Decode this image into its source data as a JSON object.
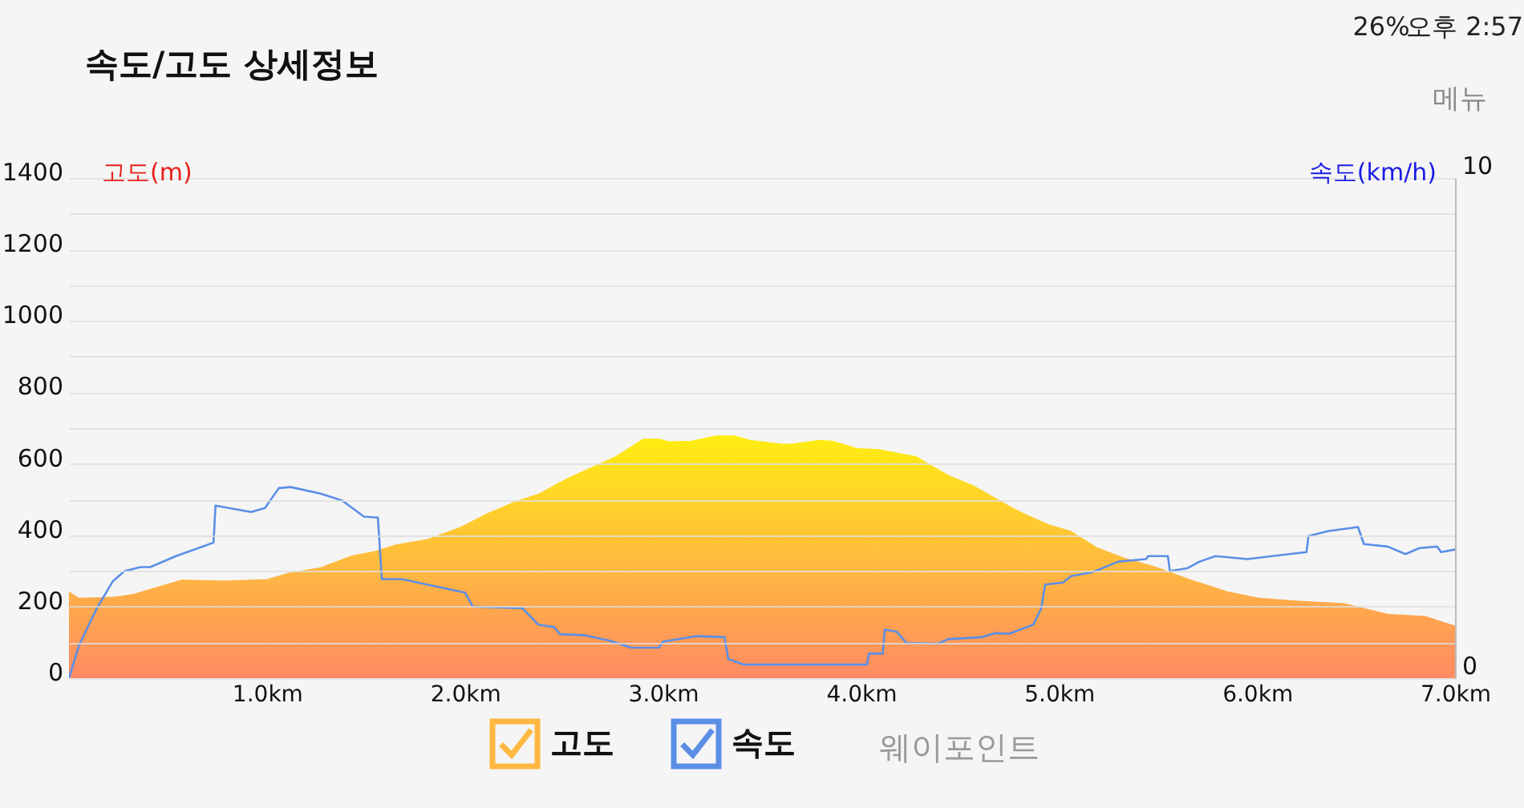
{
  "chart_data": {
    "type": "area",
    "title": "속도/고도 상세정보",
    "ylabel": "고도(m)",
    "y2label": "속도(km/h)",
    "annotations": [
      "26%",
      "오후 2:57",
      "메뉴",
      "웨이포인트"
    ],
    "xlim": [
      0,
      7
    ],
    "xticks": [
      {
        "value": 1,
        "label": "1.0km"
      },
      {
        "value": 2,
        "label": "2.0km"
      },
      {
        "value": 3,
        "label": "3.0km"
      },
      {
        "value": 4,
        "label": "4.0km"
      },
      {
        "value": 5,
        "label": "5.0km"
      },
      {
        "value": 6,
        "label": "6.0km"
      },
      {
        "value": 7,
        "label": "7.0km"
      }
    ],
    "ylim": [
      0,
      1400
    ],
    "yticks": [
      0,
      {
        "value": 100,
        "label": null
      },
      200,
      {
        "value": 300,
        "label": null
      },
      400,
      {
        "value": 500,
        "label": null
      },
      600,
      {
        "value": 700,
        "label": null
      },
      800,
      {
        "value": 900,
        "label": null
      },
      1000,
      {
        "value": 1100,
        "label": null
      },
      1200,
      {
        "value": 1300,
        "label": null
      },
      1400
    ],
    "y2lim": [
      0,
      10
    ],
    "y2ticks": [
      0,
      10
    ],
    "grid": "y",
    "legend": "bottom",
    "series": [
      {
        "name": "고도",
        "color": "#ffb840",
        "x": [
          0,
          0.05,
          0.23,
          0.32,
          0.46,
          0.57,
          0.78,
          1.0,
          1.11,
          1.27,
          1.43,
          1.54,
          1.65,
          1.81,
          1.98,
          2.11,
          2.25,
          2.37,
          2.52,
          2.76,
          2.9,
          2.98,
          3.03,
          3.14,
          3.27,
          3.36,
          3.44,
          3.6,
          3.65,
          3.79,
          3.86,
          3.98,
          4.09,
          4.28,
          4.44,
          4.57,
          4.76,
          4.84,
          4.95,
          5.06,
          5.19,
          5.33,
          5.49,
          5.66,
          5.85,
          6.01,
          6.2,
          6.44,
          6.66,
          6.85,
          7.0
        ],
        "values": [
          243,
          225,
          228,
          235,
          258,
          276,
          273,
          277,
          295,
          310,
          344,
          355,
          374,
          389,
          424,
          461,
          494,
          516,
          561,
          621,
          670,
          670,
          663,
          664,
          679,
          679,
          667,
          656,
          656,
          667,
          664,
          644,
          641,
          621,
          569,
          539,
          479,
          457,
          430,
          412,
          367,
          337,
          312,
          277,
          243,
          225,
          217,
          210,
          180,
          174,
          147
        ]
      },
      {
        "name": "속도",
        "type": "line",
        "axis": "y2",
        "color": "#5b8fe6",
        "x": [
          0,
          0.05,
          0.14,
          0.22,
          0.28,
          0.36,
          0.41,
          0.54,
          0.73,
          0.74,
          0.92,
          0.99,
          1.06,
          1.12,
          1.27,
          1.38,
          1.49,
          1.56,
          1.58,
          1.68,
          1.87,
          2.0,
          2.04,
          2.29,
          2.37,
          2.45,
          2.48,
          2.6,
          2.73,
          2.84,
          2.98,
          3.0,
          3.17,
          3.31,
          3.33,
          3.41,
          4.03,
          4.04,
          4.11,
          4.12,
          4.18,
          4.23,
          4.39,
          4.44,
          4.61,
          4.68,
          4.75,
          4.87,
          4.91,
          4.93,
          5.02,
          5.06,
          5.17,
          5.3,
          5.44,
          5.45,
          5.55,
          5.56,
          5.65,
          5.71,
          5.79,
          5.95,
          6.12,
          6.25,
          6.26,
          6.36,
          6.51,
          6.54,
          6.66,
          6.75,
          6.82,
          6.91,
          6.93,
          7.0
        ],
        "values": [
          0,
          0.65,
          1.39,
          1.93,
          2.14,
          2.22,
          2.22,
          2.44,
          2.71,
          3.45,
          3.32,
          3.4,
          3.8,
          3.82,
          3.69,
          3.55,
          3.23,
          3.21,
          1.98,
          1.98,
          1.82,
          1.71,
          1.43,
          1.4,
          1.07,
          1.02,
          0.88,
          0.86,
          0.75,
          0.61,
          0.61,
          0.73,
          0.84,
          0.82,
          0.38,
          0.27,
          0.27,
          0.49,
          0.49,
          0.97,
          0.93,
          0.7,
          0.69,
          0.78,
          0.82,
          0.9,
          0.89,
          1.07,
          1.39,
          1.87,
          1.91,
          2.04,
          2.12,
          2.33,
          2.38,
          2.44,
          2.44,
          2.14,
          2.2,
          2.33,
          2.44,
          2.38,
          2.46,
          2.52,
          2.84,
          2.94,
          3.02,
          2.68,
          2.63,
          2.48,
          2.6,
          2.63,
          2.52,
          2.57
        ]
      }
    ]
  }
}
